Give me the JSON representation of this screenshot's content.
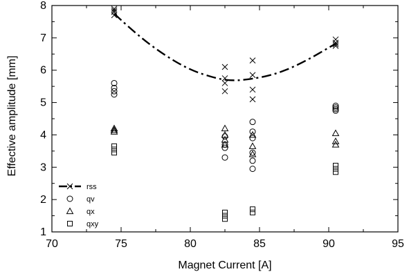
{
  "chart_data": {
    "type": "scatter",
    "xlabel": "Magnet Current [A]",
    "ylabel": "Effective amplitude [mm]",
    "xlim": [
      70,
      95
    ],
    "ylim": [
      1,
      8
    ],
    "xticks": [
      70,
      75,
      80,
      85,
      90,
      95
    ],
    "yticks": [
      1,
      2,
      3,
      4,
      5,
      6,
      7,
      8
    ],
    "grid": false,
    "legend_position": "bottom-left",
    "series": [
      {
        "name": "rss",
        "marker": "x",
        "points": [
          [
            74.5,
            7.7
          ],
          [
            74.5,
            7.8
          ],
          [
            74.5,
            7.85
          ],
          [
            74.5,
            7.9
          ],
          [
            82.5,
            5.35
          ],
          [
            82.5,
            5.6
          ],
          [
            82.5,
            5.75
          ],
          [
            82.5,
            6.1
          ],
          [
            84.5,
            5.1
          ],
          [
            84.5,
            5.4
          ],
          [
            84.5,
            5.85
          ],
          [
            84.5,
            6.3
          ],
          [
            90.5,
            6.75
          ],
          [
            90.5,
            6.8
          ],
          [
            90.5,
            6.85
          ],
          [
            90.5,
            6.95
          ]
        ],
        "fit_curve": [
          [
            74.5,
            7.75
          ],
          [
            76,
            7.15
          ],
          [
            78,
            6.5
          ],
          [
            80,
            6.0
          ],
          [
            82,
            5.73
          ],
          [
            83,
            5.68
          ],
          [
            84,
            5.7
          ],
          [
            86,
            5.85
          ],
          [
            88,
            6.2
          ],
          [
            90.5,
            6.82
          ]
        ]
      },
      {
        "name": "qv",
        "marker": "circle",
        "points": [
          [
            74.5,
            5.25
          ],
          [
            74.5,
            5.35
          ],
          [
            74.5,
            5.45
          ],
          [
            74.5,
            5.6
          ],
          [
            82.5,
            3.3
          ],
          [
            82.5,
            3.6
          ],
          [
            82.5,
            3.7
          ],
          [
            82.5,
            3.95
          ],
          [
            84.5,
            2.95
          ],
          [
            84.5,
            3.2
          ],
          [
            84.5,
            3.45
          ],
          [
            84.5,
            3.9
          ],
          [
            84.5,
            4.1
          ],
          [
            84.5,
            4.4
          ],
          [
            90.5,
            4.75
          ],
          [
            90.5,
            4.8
          ],
          [
            90.5,
            4.85
          ],
          [
            90.5,
            4.9
          ]
        ]
      },
      {
        "name": "qx",
        "marker": "triangle",
        "points": [
          [
            74.5,
            4.1
          ],
          [
            74.5,
            4.15
          ],
          [
            74.5,
            4.2
          ],
          [
            82.5,
            3.7
          ],
          [
            82.5,
            3.85
          ],
          [
            82.5,
            4.0
          ],
          [
            82.5,
            4.2
          ],
          [
            84.5,
            3.4
          ],
          [
            84.5,
            3.65
          ],
          [
            84.5,
            4.0
          ],
          [
            90.5,
            3.7
          ],
          [
            90.5,
            3.8
          ],
          [
            90.5,
            4.05
          ]
        ]
      },
      {
        "name": "qxy",
        "marker": "square",
        "points": [
          [
            74.5,
            3.45
          ],
          [
            74.5,
            3.55
          ],
          [
            74.5,
            3.65
          ],
          [
            82.5,
            1.4
          ],
          [
            82.5,
            1.5
          ],
          [
            82.5,
            1.6
          ],
          [
            84.5,
            1.6
          ],
          [
            84.5,
            1.7
          ],
          [
            90.5,
            2.85
          ],
          [
            90.5,
            2.95
          ],
          [
            90.5,
            3.05
          ]
        ]
      }
    ]
  }
}
